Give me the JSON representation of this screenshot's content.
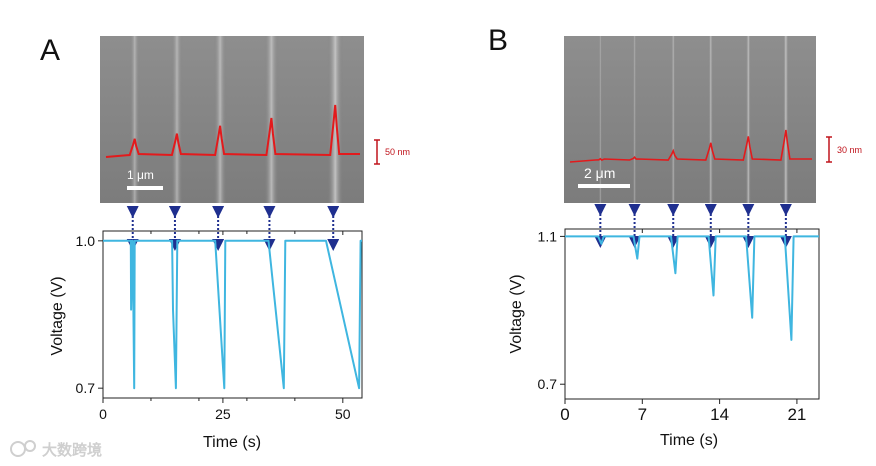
{
  "figure": {
    "colors": {
      "profile": "#e31a1c",
      "trace": "#3fb6e0",
      "arrow": "#1f2f8f",
      "scale_bar": "#c0141c",
      "sem_bg": "#8a8a8a"
    },
    "watermark": "大数跨境",
    "panels": [
      {
        "id": "A",
        "letter": "A",
        "sem": {
          "scale_bar_label": "1 μm",
          "height_bar_label": "50 nm",
          "peak_relative_heights": [
            0.35,
            0.45,
            0.6,
            0.75,
            1.0
          ]
        },
        "chart_data": {
          "type": "line",
          "title": "",
          "xlabel": "Time (s)",
          "ylabel": "Voltage (V)",
          "xlim": [
            0,
            54
          ],
          "ylim": [
            0.68,
            1.02
          ],
          "xticks": [
            0,
            25,
            50
          ],
          "xtick_labels": [
            "0",
            "25",
            "50"
          ],
          "xticks_minor": [
            10,
            20,
            30,
            40
          ],
          "yticks": [
            1.0,
            0.7
          ],
          "ytick_labels": [
            "1.0",
            "0.7"
          ],
          "series": [
            {
              "name": "Voltage",
              "x": [
                0,
                5.8,
                5.85,
                6.1,
                6.2,
                6.5,
                6.6,
                14.4,
                14.6,
                15.2,
                15.5,
                23.2,
                23.4,
                25.3,
                25.5,
                34.3,
                34.5,
                37.7,
                38.0,
                46.3,
                46.5,
                53.4,
                53.7,
                54
              ],
              "y": [
                1.0,
                1.0,
                0.86,
                1.0,
                1.0,
                0.7,
                1.0,
                1.0,
                0.86,
                0.7,
                1.0,
                1.0,
                1.0,
                0.7,
                1.0,
                1.0,
                1.0,
                0.7,
                1.0,
                1.0,
                1.0,
                0.7,
                1.0,
                1.0
              ]
            }
          ],
          "event_markers_x": [
            6.2,
            15.0,
            24.0,
            34.7,
            48.0
          ]
        }
      },
      {
        "id": "B",
        "letter": "B",
        "sem": {
          "scale_bar_label": "2 μm",
          "height_bar_label": "30 nm",
          "peak_relative_heights": [
            0.1,
            0.15,
            0.35,
            0.6,
            0.8,
            1.0
          ]
        },
        "chart_data": {
          "type": "line",
          "title": "",
          "xlabel": "Time (s)",
          "ylabel": "Voltage (V)",
          "xlim": [
            0,
            23
          ],
          "ylim": [
            0.66,
            1.12
          ],
          "xticks": [
            0,
            7,
            14,
            21
          ],
          "xtick_labels": [
            "0",
            "7",
            "14",
            "21"
          ],
          "yticks": [
            1.1,
            0.7
          ],
          "ytick_labels": [
            "1.1",
            "0.7"
          ],
          "series": [
            {
              "name": "Voltage",
              "x": [
                0,
                3.0,
                3.3,
                3.5,
                6.2,
                6.55,
                6.75,
                9.6,
                10.0,
                10.2,
                13.0,
                13.45,
                13.65,
                16.4,
                16.95,
                17.15,
                19.9,
                20.5,
                20.7,
                23
              ],
              "y": [
                1.1,
                1.1,
                1.08,
                1.1,
                1.1,
                1.04,
                1.1,
                1.1,
                1.0,
                1.1,
                1.1,
                0.94,
                1.1,
                1.1,
                0.88,
                1.1,
                1.1,
                0.82,
                1.1,
                1.1
              ]
            }
          ],
          "event_markers_x": [
            3.2,
            6.3,
            9.8,
            13.2,
            16.6,
            20.0
          ]
        }
      }
    ]
  }
}
